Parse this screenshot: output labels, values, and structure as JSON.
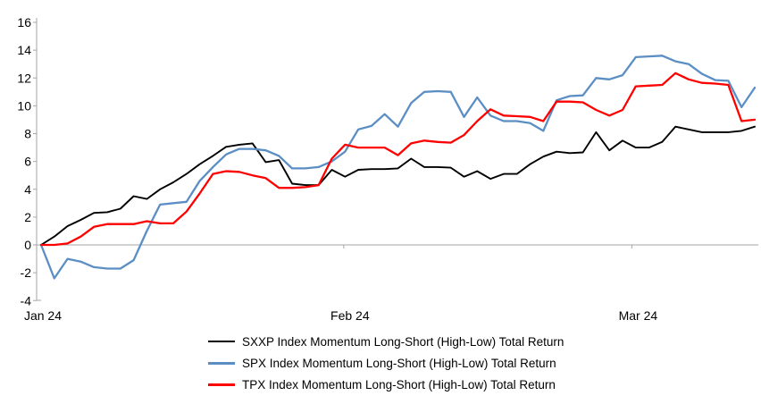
{
  "chart_data": {
    "type": "line",
    "title": "",
    "grid": false,
    "legend_position": "bottom",
    "axis_color": "#A6A6A6",
    "text_color": "#000000",
    "y_axis": {
      "min": -4,
      "max": 16,
      "step": 2,
      "tick_labels": [
        "16",
        "14",
        "12",
        "10",
        "8",
        "6",
        "4",
        "2",
        "0",
        "-2",
        "-4"
      ]
    },
    "x_axis": {
      "tick_labels": [
        "Jan 24",
        "Feb 24",
        "Mar 24"
      ],
      "tick_positions": [
        0,
        22.9,
        44.7
      ]
    },
    "series": [
      {
        "id": "sxxp",
        "name": "SXXP Index Momentum Long-Short (High-Low) Total Return",
        "color": "#000000",
        "stroke_width": 1.9,
        "values": [
          0,
          0.6,
          1.35,
          1.8,
          2.3,
          2.35,
          2.6,
          3.5,
          3.3,
          4.0,
          4.5,
          5.1,
          5.8,
          6.4,
          7.05,
          7.2,
          7.3,
          5.95,
          6.1,
          4.4,
          4.3,
          4.3,
          5.4,
          4.9,
          5.4,
          5.45,
          5.45,
          5.5,
          6.2,
          5.6,
          5.6,
          5.55,
          4.9,
          5.3,
          4.75,
          5.1,
          5.1,
          5.8,
          6.35,
          6.7,
          6.6,
          6.65,
          8.1,
          6.8,
          7.5,
          7.0,
          7.0,
          7.4,
          8.5,
          8.3,
          8.1,
          8.1,
          8.1,
          8.2,
          8.5
        ]
      },
      {
        "id": "spx",
        "name": "SPX Index Momentum Long-Short (High-Low) Total Return",
        "color": "#5B8EC4",
        "stroke_width": 2.3,
        "values": [
          0,
          -2.4,
          -1.0,
          -1.2,
          -1.6,
          -1.7,
          -1.7,
          -1.1,
          1.0,
          2.9,
          3.0,
          3.1,
          4.6,
          5.6,
          6.5,
          6.9,
          6.9,
          6.8,
          6.4,
          5.5,
          5.5,
          5.6,
          6.0,
          6.7,
          8.3,
          8.55,
          9.4,
          8.5,
          10.2,
          11.0,
          11.05,
          11.0,
          9.2,
          10.6,
          9.3,
          8.9,
          8.9,
          8.75,
          8.2,
          10.4,
          10.7,
          10.75,
          12.0,
          11.9,
          12.2,
          13.5,
          13.55,
          13.6,
          13.2,
          13.0,
          12.3,
          11.85,
          11.8,
          9.9,
          11.3
        ]
      },
      {
        "id": "tpx",
        "name": "TPX Index Momentum Long-Short (High-Low) Total Return",
        "color": "#FF0000",
        "stroke_width": 2.3,
        "values": [
          0,
          0,
          0.1,
          0.6,
          1.3,
          1.5,
          1.5,
          1.5,
          1.7,
          1.55,
          1.55,
          2.4,
          3.7,
          5.1,
          5.3,
          5.25,
          5.0,
          4.8,
          4.1,
          4.1,
          4.15,
          4.3,
          6.2,
          7.2,
          7.0,
          7.0,
          7.0,
          6.45,
          7.3,
          7.5,
          7.4,
          7.35,
          7.9,
          8.9,
          9.75,
          9.3,
          9.25,
          9.2,
          8.9,
          10.3,
          10.3,
          10.25,
          9.7,
          9.3,
          9.7,
          11.4,
          11.45,
          11.5,
          12.35,
          11.9,
          11.65,
          11.6,
          11.5,
          8.9,
          9.0
        ]
      }
    ]
  }
}
